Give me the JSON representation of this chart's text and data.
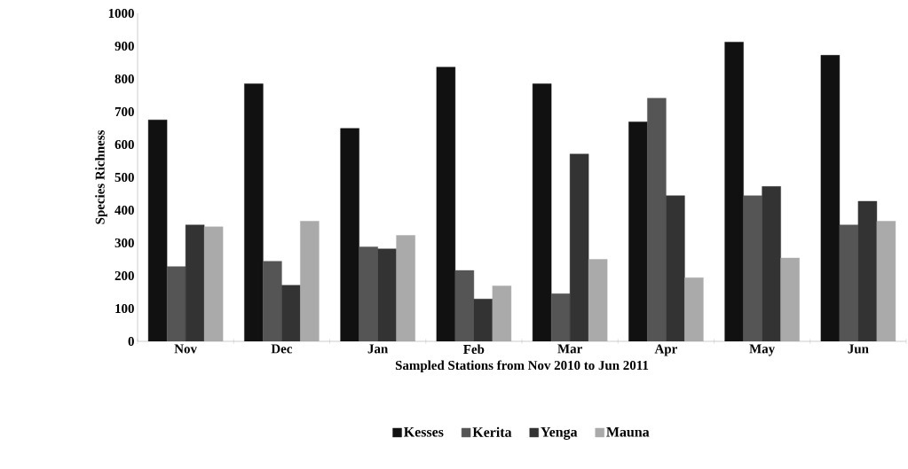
{
  "chart_data": {
    "type": "bar",
    "xlabel": "Sampled Stations from Nov 2010 to Jun 2011",
    "ylabel": "Species Richness",
    "categories": [
      "Nov",
      "Dec",
      "Jan",
      "Feb",
      "Mar",
      "Apr",
      "May",
      "Jun"
    ],
    "series": [
      {
        "name": "Kesses",
        "color": "#111111",
        "values": [
          675,
          785,
          649,
          836,
          785,
          669,
          912,
          872
        ]
      },
      {
        "name": "Kerita",
        "color": "#555555",
        "values": [
          228,
          244,
          288,
          216,
          145,
          741,
          444,
          355
        ]
      },
      {
        "name": "Yenga",
        "color": "#333333",
        "values": [
          355,
          171,
          282,
          129,
          571,
          444,
          472,
          427
        ]
      },
      {
        "name": "Mauna",
        "color": "#aaaaaa",
        "values": [
          349,
          366,
          323,
          169,
          250,
          194,
          254,
          366
        ]
      }
    ],
    "ylim": [
      0,
      1000
    ],
    "yticks": [
      0,
      100,
      200,
      300,
      400,
      500,
      600,
      700,
      800,
      900,
      1000
    ],
    "grid": false,
    "legend": "bottom"
  }
}
